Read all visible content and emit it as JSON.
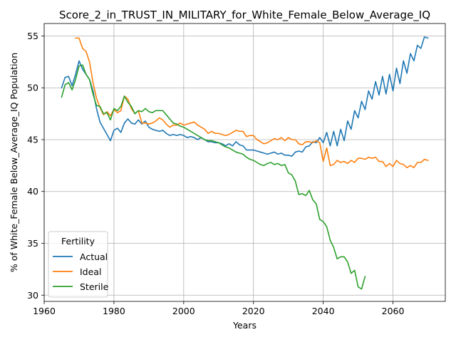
{
  "chart_data": {
    "type": "line",
    "title": "Score_2_in_TRUST_IN_MILITARY_for_White_Female_Below_Average_IQ",
    "xlabel": "Years",
    "ylabel": "% of White_Female Below_Average_IQ Population",
    "xlim": [
      1960,
      2075
    ],
    "ylim": [
      29.4,
      56.2
    ],
    "xticks": [
      1960,
      1980,
      2000,
      2020,
      2040,
      2060
    ],
    "yticks": [
      30,
      35,
      40,
      45,
      50,
      55
    ],
    "grid": true,
    "legend": {
      "title": "Fertility",
      "placement": "lower-left"
    },
    "series": [
      {
        "name": "Actual",
        "color": "#1f77b4",
        "points": [
          [
            1965,
            50.0
          ],
          [
            1966,
            51.0
          ],
          [
            1967,
            51.1
          ],
          [
            1968,
            50.2
          ],
          [
            1969,
            51.3
          ],
          [
            1970,
            52.6
          ],
          [
            1971,
            51.8
          ],
          [
            1972,
            51.3
          ],
          [
            1973,
            50.8
          ],
          [
            1974,
            49.7
          ],
          [
            1975,
            48.0
          ],
          [
            1976,
            46.7
          ],
          [
            1977,
            46.1
          ],
          [
            1978,
            45.5
          ],
          [
            1979,
            44.9
          ],
          [
            1980,
            45.9
          ],
          [
            1981,
            46.1
          ],
          [
            1982,
            45.7
          ],
          [
            1983,
            46.6
          ],
          [
            1984,
            47.0
          ],
          [
            1985,
            46.6
          ],
          [
            1986,
            46.5
          ],
          [
            1987,
            46.9
          ],
          [
            1988,
            46.5
          ],
          [
            1989,
            46.8
          ],
          [
            1990,
            46.2
          ],
          [
            1991,
            46.0
          ],
          [
            1992,
            45.9
          ],
          [
            1993,
            45.8
          ],
          [
            1994,
            45.9
          ],
          [
            1995,
            45.6
          ],
          [
            1996,
            45.4
          ],
          [
            1997,
            45.5
          ],
          [
            1998,
            45.4
          ],
          [
            1999,
            45.5
          ],
          [
            2000,
            45.4
          ],
          [
            2001,
            45.2
          ],
          [
            2002,
            45.3
          ],
          [
            2003,
            45.2
          ],
          [
            2004,
            45.0
          ],
          [
            2005,
            45.2
          ],
          [
            2006,
            45.0
          ],
          [
            2007,
            44.8
          ],
          [
            2008,
            44.8
          ],
          [
            2009,
            44.7
          ],
          [
            2010,
            44.7
          ],
          [
            2011,
            44.6
          ],
          [
            2012,
            44.4
          ],
          [
            2013,
            44.6
          ],
          [
            2014,
            44.4
          ],
          [
            2015,
            44.8
          ],
          [
            2016,
            44.5
          ],
          [
            2017,
            44.4
          ],
          [
            2018,
            44.0
          ],
          [
            2019,
            44.0
          ],
          [
            2020,
            44.0
          ],
          [
            2021,
            43.9
          ],
          [
            2022,
            43.8
          ],
          [
            2023,
            43.7
          ],
          [
            2024,
            43.6
          ],
          [
            2025,
            43.7
          ],
          [
            2026,
            43.8
          ],
          [
            2027,
            43.6
          ],
          [
            2028,
            43.7
          ],
          [
            2029,
            43.5
          ],
          [
            2030,
            43.5
          ],
          [
            2031,
            43.4
          ],
          [
            2032,
            43.8
          ],
          [
            2033,
            43.9
          ],
          [
            2034,
            43.8
          ],
          [
            2035,
            44.3
          ],
          [
            2036,
            44.4
          ],
          [
            2037,
            44.8
          ],
          [
            2038,
            44.7
          ],
          [
            2039,
            45.2
          ],
          [
            2040,
            44.7
          ],
          [
            2041,
            45.7
          ],
          [
            2042,
            44.4
          ],
          [
            2043,
            45.8
          ],
          [
            2044,
            44.4
          ],
          [
            2045,
            46.0
          ],
          [
            2046,
            44.9
          ],
          [
            2047,
            46.8
          ],
          [
            2048,
            46.0
          ],
          [
            2049,
            47.8
          ],
          [
            2050,
            47.1
          ],
          [
            2051,
            48.7
          ],
          [
            2052,
            47.9
          ],
          [
            2053,
            49.7
          ],
          [
            2054,
            48.9
          ],
          [
            2055,
            50.6
          ],
          [
            2056,
            49.3
          ],
          [
            2057,
            51.1
          ],
          [
            2058,
            49.4
          ],
          [
            2059,
            51.3
          ],
          [
            2060,
            49.7
          ],
          [
            2061,
            51.9
          ],
          [
            2062,
            50.4
          ],
          [
            2063,
            52.6
          ],
          [
            2064,
            51.4
          ],
          [
            2065,
            53.3
          ],
          [
            2066,
            52.6
          ],
          [
            2067,
            54.1
          ],
          [
            2068,
            53.8
          ],
          [
            2069,
            54.9
          ],
          [
            2070,
            54.8
          ]
        ]
      },
      {
        "name": "Ideal",
        "color": "#ff7f0e",
        "points": [
          [
            1969,
            54.8
          ],
          [
            1970,
            54.8
          ],
          [
            1971,
            53.8
          ],
          [
            1972,
            53.5
          ],
          [
            1973,
            52.5
          ],
          [
            1974,
            50.5
          ],
          [
            1975,
            49.0
          ],
          [
            1976,
            48.1
          ],
          [
            1977,
            47.4
          ],
          [
            1978,
            47.7
          ],
          [
            1979,
            47.3
          ],
          [
            1980,
            47.9
          ],
          [
            1981,
            47.6
          ],
          [
            1982,
            47.8
          ],
          [
            1983,
            49.2
          ],
          [
            1984,
            48.9
          ],
          [
            1985,
            48.0
          ],
          [
            1986,
            47.5
          ],
          [
            1987,
            47.8
          ],
          [
            1988,
            46.6
          ],
          [
            1989,
            46.6
          ],
          [
            1990,
            46.5
          ],
          [
            1991,
            46.6
          ],
          [
            1992,
            46.8
          ],
          [
            1993,
            47.1
          ],
          [
            1994,
            46.9
          ],
          [
            1995,
            46.5
          ],
          [
            1996,
            46.2
          ],
          [
            1997,
            46.4
          ],
          [
            1998,
            46.4
          ],
          [
            1999,
            46.6
          ],
          [
            2000,
            46.4
          ],
          [
            2001,
            46.5
          ],
          [
            2002,
            46.6
          ],
          [
            2003,
            46.7
          ],
          [
            2004,
            46.4
          ],
          [
            2005,
            46.2
          ],
          [
            2006,
            46.0
          ],
          [
            2007,
            45.6
          ],
          [
            2008,
            45.8
          ],
          [
            2009,
            45.6
          ],
          [
            2010,
            45.6
          ],
          [
            2011,
            45.5
          ],
          [
            2012,
            45.4
          ],
          [
            2013,
            45.5
          ],
          [
            2014,
            45.7
          ],
          [
            2015,
            45.9
          ],
          [
            2016,
            45.8
          ],
          [
            2017,
            45.8
          ],
          [
            2018,
            45.3
          ],
          [
            2019,
            45.4
          ],
          [
            2020,
            45.4
          ],
          [
            2021,
            45.0
          ],
          [
            2022,
            44.8
          ],
          [
            2023,
            44.6
          ],
          [
            2024,
            44.7
          ],
          [
            2025,
            44.9
          ],
          [
            2026,
            45.1
          ],
          [
            2027,
            45.0
          ],
          [
            2028,
            45.2
          ],
          [
            2029,
            44.9
          ],
          [
            2030,
            45.2
          ],
          [
            2031,
            45.0
          ],
          [
            2032,
            45.0
          ],
          [
            2033,
            44.6
          ],
          [
            2034,
            44.5
          ],
          [
            2035,
            44.8
          ],
          [
            2036,
            44.8
          ],
          [
            2037,
            44.7
          ],
          [
            2038,
            44.9
          ],
          [
            2039,
            44.7
          ],
          [
            2040,
            42.9
          ],
          [
            2041,
            44.2
          ],
          [
            2042,
            42.5
          ],
          [
            2043,
            42.6
          ],
          [
            2044,
            43.0
          ],
          [
            2045,
            42.8
          ],
          [
            2046,
            42.9
          ],
          [
            2047,
            42.7
          ],
          [
            2048,
            43.0
          ],
          [
            2049,
            42.8
          ],
          [
            2050,
            43.2
          ],
          [
            2051,
            43.2
          ],
          [
            2052,
            43.1
          ],
          [
            2053,
            43.3
          ],
          [
            2054,
            43.2
          ],
          [
            2055,
            43.3
          ],
          [
            2056,
            42.9
          ],
          [
            2057,
            42.9
          ],
          [
            2058,
            42.4
          ],
          [
            2059,
            42.7
          ],
          [
            2060,
            42.4
          ],
          [
            2061,
            43.0
          ],
          [
            2062,
            42.7
          ],
          [
            2063,
            42.6
          ],
          [
            2064,
            42.3
          ],
          [
            2065,
            42.5
          ],
          [
            2066,
            42.3
          ],
          [
            2067,
            42.8
          ],
          [
            2068,
            42.8
          ],
          [
            2069,
            43.1
          ],
          [
            2070,
            43.0
          ]
        ]
      },
      {
        "name": "Sterile",
        "color": "#2ca02c",
        "points": [
          [
            1965,
            49.1
          ],
          [
            1966,
            50.3
          ],
          [
            1967,
            50.5
          ],
          [
            1968,
            49.8
          ],
          [
            1969,
            50.8
          ],
          [
            1970,
            52.1
          ],
          [
            1971,
            52.2
          ],
          [
            1972,
            51.3
          ],
          [
            1973,
            50.8
          ],
          [
            1974,
            49.4
          ],
          [
            1975,
            48.3
          ],
          [
            1976,
            48.2
          ],
          [
            1977,
            47.5
          ],
          [
            1978,
            47.6
          ],
          [
            1979,
            46.9
          ],
          [
            1980,
            48.0
          ],
          [
            1981,
            47.8
          ],
          [
            1982,
            48.2
          ],
          [
            1983,
            49.2
          ],
          [
            1984,
            48.6
          ],
          [
            1985,
            48.2
          ],
          [
            1986,
            47.5
          ],
          [
            1987,
            47.8
          ],
          [
            1988,
            47.7
          ],
          [
            1989,
            48.0
          ],
          [
            1990,
            47.7
          ],
          [
            1991,
            47.6
          ],
          [
            1992,
            47.8
          ],
          [
            1993,
            47.8
          ],
          [
            1994,
            47.8
          ],
          [
            1995,
            47.4
          ],
          [
            1996,
            47.0
          ],
          [
            1997,
            46.6
          ],
          [
            1998,
            46.5
          ],
          [
            1999,
            46.3
          ],
          [
            2000,
            46.2
          ],
          [
            2001,
            46.0
          ],
          [
            2002,
            45.8
          ],
          [
            2003,
            45.6
          ],
          [
            2004,
            45.4
          ],
          [
            2005,
            45.2
          ],
          [
            2006,
            45.0
          ],
          [
            2007,
            44.9
          ],
          [
            2008,
            44.9
          ],
          [
            2009,
            44.8
          ],
          [
            2010,
            44.7
          ],
          [
            2011,
            44.5
          ],
          [
            2012,
            44.3
          ],
          [
            2013,
            44.2
          ],
          [
            2014,
            44.0
          ],
          [
            2015,
            43.8
          ],
          [
            2016,
            43.7
          ],
          [
            2017,
            43.6
          ],
          [
            2018,
            43.3
          ],
          [
            2019,
            43.1
          ],
          [
            2020,
            43.0
          ],
          [
            2021,
            42.8
          ],
          [
            2022,
            42.6
          ],
          [
            2023,
            42.5
          ],
          [
            2024,
            42.7
          ],
          [
            2025,
            42.8
          ],
          [
            2026,
            42.6
          ],
          [
            2027,
            42.7
          ],
          [
            2028,
            42.5
          ],
          [
            2029,
            42.6
          ],
          [
            2030,
            41.8
          ],
          [
            2031,
            41.6
          ],
          [
            2032,
            41.0
          ],
          [
            2033,
            39.7
          ],
          [
            2034,
            39.8
          ],
          [
            2035,
            39.6
          ],
          [
            2036,
            40.1
          ],
          [
            2037,
            39.2
          ],
          [
            2038,
            38.8
          ],
          [
            2039,
            37.3
          ],
          [
            2040,
            37.1
          ],
          [
            2041,
            36.6
          ],
          [
            2042,
            35.3
          ],
          [
            2043,
            34.6
          ],
          [
            2044,
            33.5
          ],
          [
            2045,
            33.7
          ],
          [
            2046,
            33.7
          ],
          [
            2047,
            33.2
          ],
          [
            2048,
            32.1
          ],
          [
            2049,
            32.4
          ],
          [
            2050,
            30.8
          ],
          [
            2051,
            30.6
          ],
          [
            2052,
            31.8
          ]
        ]
      }
    ]
  }
}
